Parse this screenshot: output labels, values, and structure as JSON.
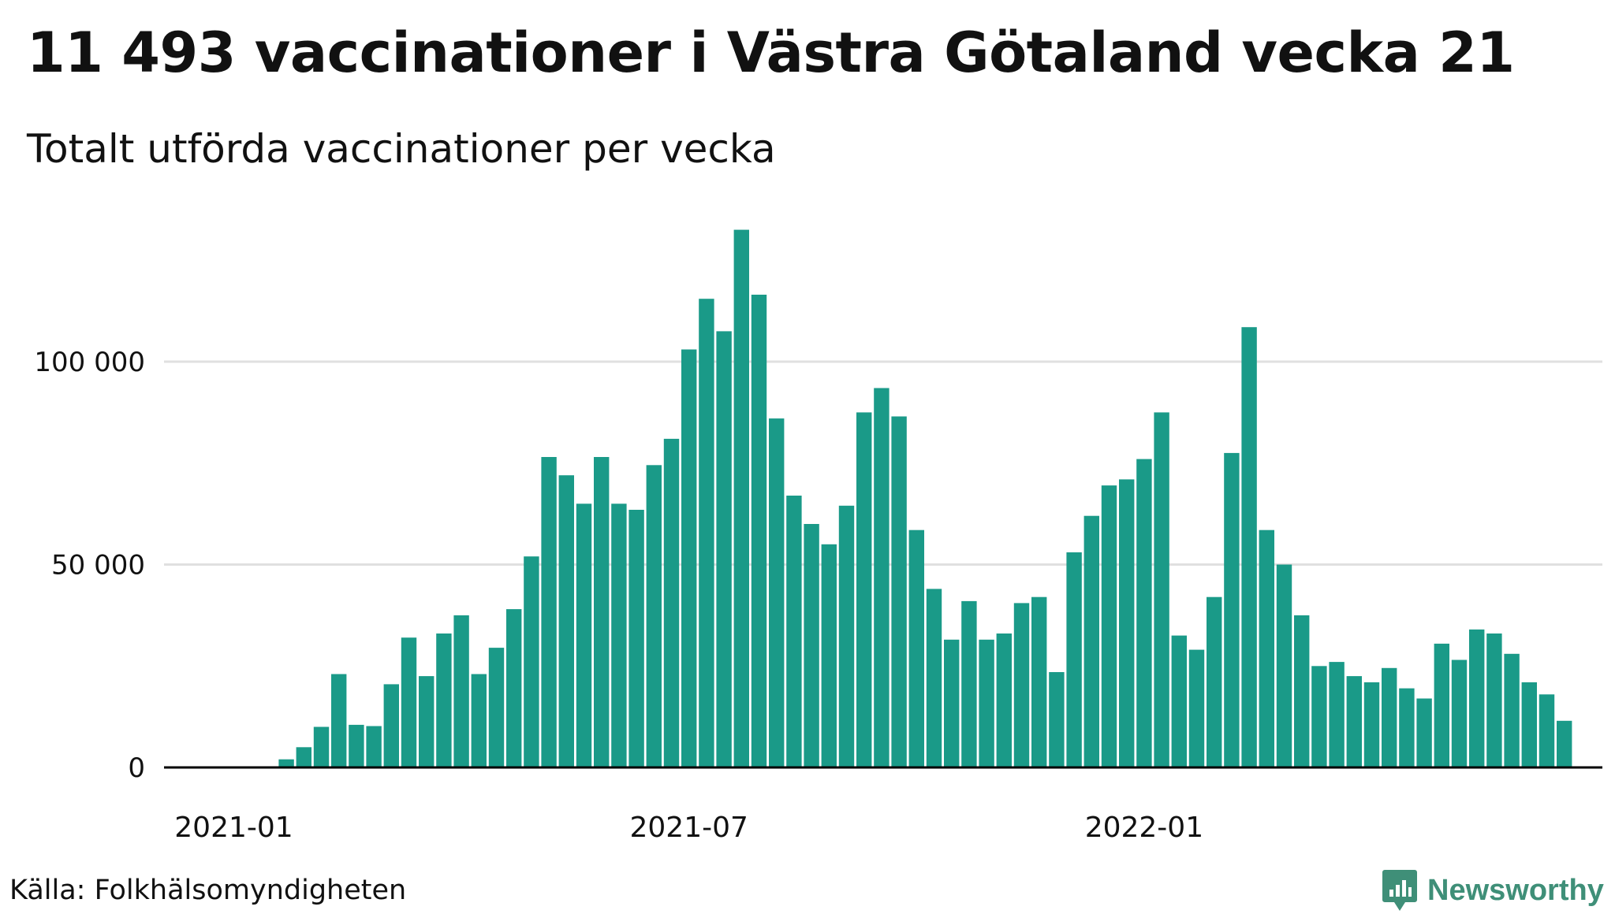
{
  "title": "11 493 vaccinationer i Västra Götaland vecka 21",
  "subtitle": "Totalt utförda vaccinationer per vecka",
  "source": "Källa: Folkhälsomyndigheten",
  "brand": {
    "name": "Newsworthy",
    "icon": "bar-chart-badge-icon",
    "color": "#3f8f78"
  },
  "colors": {
    "bar": "#1a9a88",
    "grid": "#e0e0e0",
    "axis": "#000000",
    "text": "#111111"
  },
  "chart_data": {
    "type": "bar",
    "title": "11 493 vaccinationer i Västra Götaland vecka 21",
    "subtitle": "Totalt utförda vaccinationer per vecka",
    "xlabel": "",
    "ylabel": "",
    "ylim": [
      0,
      133000
    ],
    "yticks": [
      0,
      50000,
      100000
    ],
    "ytick_labels": [
      "0",
      "50 000",
      "100 000"
    ],
    "xtick_labels": [
      {
        "label": "2021-01",
        "index": 0
      },
      {
        "label": "2021-07",
        "index": 26
      },
      {
        "label": "2022-01",
        "index": 52
      }
    ],
    "grid": true,
    "legend": "none",
    "series": [
      {
        "name": "Vaccinationer per vecka",
        "values": [
          0,
          0,
          0,
          2000,
          5000,
          10000,
          23000,
          10500,
          10200,
          20500,
          32000,
          22500,
          33000,
          37500,
          23000,
          29500,
          39000,
          52000,
          76500,
          72000,
          65000,
          76500,
          65000,
          63500,
          74500,
          81000,
          103000,
          115500,
          107500,
          132500,
          116500,
          86000,
          67000,
          60000,
          55000,
          64500,
          87500,
          93500,
          86500,
          58500,
          44000,
          31500,
          41000,
          31500,
          33000,
          40500,
          42000,
          23500,
          53000,
          62000,
          69500,
          71000,
          76000,
          87500,
          32500,
          29000,
          42000,
          77500,
          108500,
          58500,
          50000,
          37500,
          25000,
          26000,
          22500,
          21000,
          24500,
          19500,
          17000,
          30500,
          26500,
          34000,
          33000,
          28000,
          21000,
          18000,
          11493
        ]
      }
    ]
  }
}
